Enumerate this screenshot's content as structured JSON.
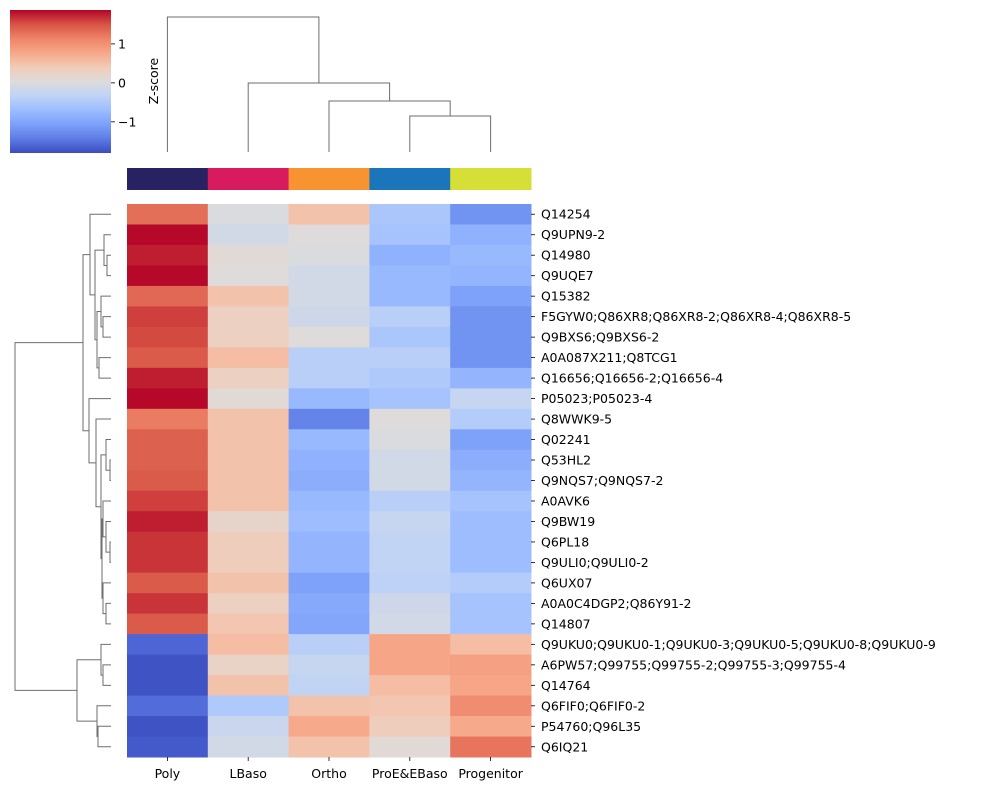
{
  "chart_data": {
    "type": "heatmap",
    "subtype": "clustermap",
    "colormap": "coolwarm",
    "vmin": -1.8,
    "vmax": 1.87,
    "colorbar": {
      "label": "Z-score",
      "ticks": [
        1,
        0,
        -1
      ],
      "tick_labels": [
        "1",
        "0",
        "−1"
      ]
    },
    "columns": [
      "Poly",
      "LBaso",
      "Ortho",
      "ProE&EBaso",
      "Progenitor"
    ],
    "col_colors": [
      "#282262",
      "#d81b5e",
      "#f79431",
      "#1b75bb",
      "#d6df36"
    ],
    "rows": [
      "Q14254",
      "Q9UPN9-2",
      "Q14980",
      "Q9UQE7",
      "Q15382",
      "F5GYW0;Q86XR8;Q86XR8-2;Q86XR8-4;Q86XR8-5",
      "Q9BXS6;Q9BXS6-2",
      "A0A087X211;Q8TCG1",
      "Q16656;Q16656-2;Q16656-4",
      "P05023;P05023-4",
      "Q8WWK9-5",
      "Q02241",
      "Q53HL2",
      "Q9NQS7;Q9NQS7-2",
      "A0AVK6",
      "Q9BW19",
      "Q6PL18",
      "Q9ULI0;Q9ULI0-2",
      "Q6UX07",
      "A0A0C4DGP2;Q86Y91-2",
      "Q14807",
      "Q9UKU0;Q9UKU0-1;Q9UKU0-3;Q9UKU0-5;Q9UKU0-8;Q9UKU0-9",
      "A6PW57;Q99755;Q99755-2;Q99755-3;Q99755-4",
      "Q14764",
      "Q6FIF0;Q6FIF0-2",
      "P54760;Q96L35",
      "Q6IQ21"
    ],
    "values": [
      [
        1.3,
        0.0,
        0.5,
        -0.55,
        -1.2
      ],
      [
        1.85,
        -0.1,
        0.05,
        -0.6,
        -0.85
      ],
      [
        1.75,
        0.1,
        0.0,
        -0.85,
        -0.75
      ],
      [
        1.85,
        0.05,
        -0.1,
        -0.75,
        -0.8
      ],
      [
        1.35,
        0.5,
        -0.1,
        -0.75,
        -1.05
      ],
      [
        1.6,
        0.3,
        -0.15,
        -0.4,
        -1.2
      ],
      [
        1.55,
        0.3,
        0.05,
        -0.55,
        -1.2
      ],
      [
        1.45,
        0.55,
        -0.4,
        -0.4,
        -1.2
      ],
      [
        1.75,
        0.3,
        -0.4,
        -0.5,
        -0.8
      ],
      [
        1.85,
        0.1,
        -0.75,
        -0.6,
        -0.25
      ],
      [
        1.2,
        0.5,
        -1.35,
        0.05,
        -0.45
      ],
      [
        1.4,
        0.5,
        -0.75,
        0.0,
        -1.05
      ],
      [
        1.4,
        0.5,
        -0.85,
        -0.1,
        -0.9
      ],
      [
        1.45,
        0.5,
        -0.9,
        -0.1,
        -0.8
      ],
      [
        1.6,
        0.5,
        -0.75,
        -0.4,
        -0.6
      ],
      [
        1.75,
        0.2,
        -0.7,
        -0.25,
        -0.7
      ],
      [
        1.65,
        0.35,
        -0.8,
        -0.3,
        -0.7
      ],
      [
        1.65,
        0.35,
        -0.8,
        -0.3,
        -0.7
      ],
      [
        1.45,
        0.5,
        -1.05,
        -0.35,
        -0.45
      ],
      [
        1.65,
        0.3,
        -0.95,
        -0.15,
        -0.6
      ],
      [
        1.45,
        0.45,
        -1.0,
        -0.1,
        -0.6
      ],
      [
        -1.6,
        0.55,
        -0.4,
        0.8,
        0.55
      ],
      [
        -1.75,
        0.25,
        -0.25,
        0.8,
        0.85
      ],
      [
        -1.75,
        0.5,
        -0.3,
        0.55,
        0.8
      ],
      [
        -1.55,
        -0.5,
        0.5,
        0.45,
        1.05
      ],
      [
        -1.75,
        -0.2,
        0.75,
        0.35,
        0.75
      ],
      [
        -1.7,
        -0.1,
        0.5,
        0.1,
        1.25
      ]
    ],
    "row_dendrogram": true,
    "col_dendrogram": true
  }
}
